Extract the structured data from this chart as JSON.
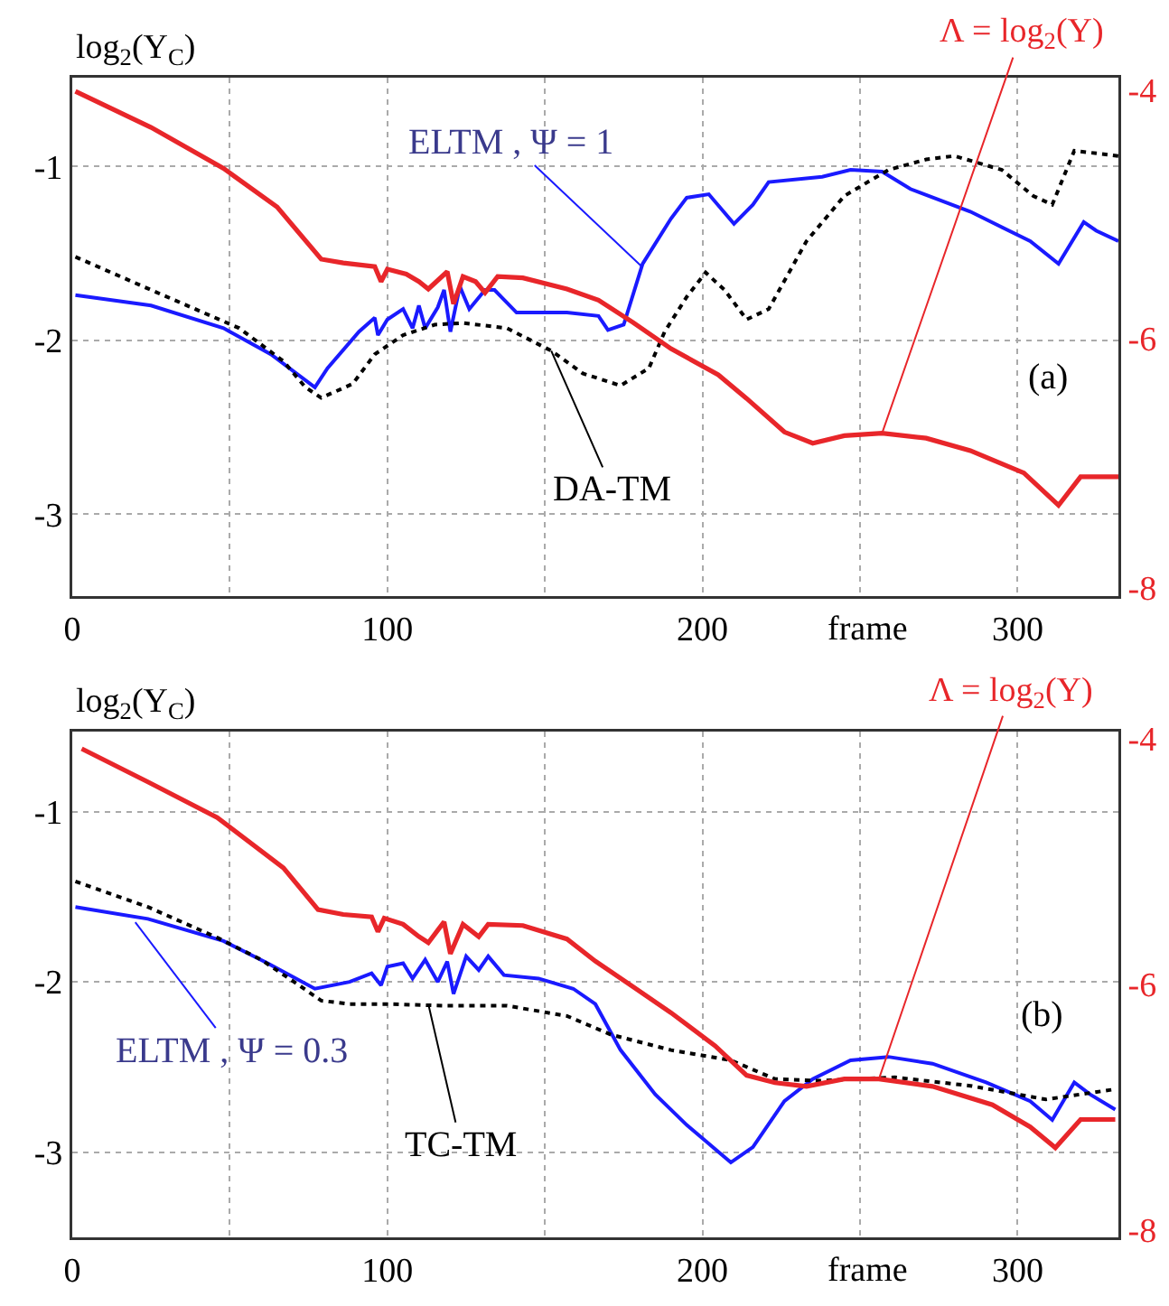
{
  "chart_data": [
    {
      "type": "line",
      "xlabel": "frame",
      "ylabel": "log$_{2}$(Y$_{C}$)",
      "y2label": "Λ = log$_{2}$(Y)",
      "xlim": [
        0,
        332
      ],
      "xticks": [
        0,
        {
          "value": 50,
          "label": null
        },
        100,
        {
          "value": 150,
          "label": null
        },
        200,
        {
          "value": 250,
          "label": null
        },
        300
      ],
      "ylim": [
        -3.47,
        -0.49
      ],
      "yticks": [
        -1,
        -2,
        -3
      ],
      "y2lim": [
        -8.07,
        -3.9
      ],
      "y2ticks": [
        -4,
        -6,
        -8
      ],
      "grid": true,
      "annotations": [
        {
          "text": "ELTM , Ψ = 1",
          "x": 181,
          "y": -1.58
        },
        {
          "text": "DA-TM",
          "x": 152,
          "y": -2.06
        },
        "(a)"
      ],
      "series": [
        {
          "color": "#e8262a",
          "axis": "y2",
          "line_style": "solid",
          "x": [
            1,
            25,
            48,
            65,
            79,
            86,
            96,
            98,
            100,
            106,
            110,
            113,
            119,
            121,
            124,
            128,
            131,
            135,
            143,
            157,
            167,
            178,
            190,
            205,
            214,
            226,
            235,
            245,
            257,
            271,
            285,
            302,
            313,
            320,
            332
          ],
          "values": [
            -4.01,
            -4.3,
            -4.63,
            -4.94,
            -5.36,
            -5.39,
            -5.42,
            -5.54,
            -5.44,
            -5.48,
            -5.54,
            -5.6,
            -5.46,
            -5.72,
            -5.5,
            -5.54,
            -5.63,
            -5.5,
            -5.51,
            -5.6,
            -5.69,
            -5.87,
            -6.08,
            -6.29,
            -6.48,
            -6.75,
            -6.84,
            -6.78,
            -6.76,
            -6.8,
            -6.9,
            -7.08,
            -7.34,
            -7.11,
            -7.11
          ]
        },
        {
          "color": "#1a1aff",
          "axis": "y",
          "line_style": "solid",
          "x": [
            1,
            25,
            48,
            63,
            77,
            81,
            91,
            96,
            97,
            100,
            105,
            108,
            110,
            112,
            116,
            118,
            120,
            123,
            126,
            131,
            134,
            141,
            148,
            157,
            167,
            170,
            175,
            181,
            190,
            195,
            202,
            210,
            216,
            221,
            238,
            247,
            257,
            266,
            285,
            304,
            313,
            321,
            325,
            332
          ],
          "values": [
            -1.74,
            -1.8,
            -1.93,
            -2.08,
            -2.27,
            -2.16,
            -1.95,
            -1.87,
            -1.97,
            -1.88,
            -1.82,
            -1.93,
            -1.8,
            -1.93,
            -1.81,
            -1.71,
            -1.95,
            -1.69,
            -1.82,
            -1.71,
            -1.71,
            -1.84,
            -1.84,
            -1.84,
            -1.86,
            -1.94,
            -1.91,
            -1.56,
            -1.3,
            -1.18,
            -1.16,
            -1.33,
            -1.22,
            -1.09,
            -1.06,
            -1.02,
            -1.03,
            -1.13,
            -1.26,
            -1.43,
            -1.56,
            -1.32,
            -1.37,
            -1.43
          ]
        },
        {
          "color": "#000000",
          "axis": "y",
          "line_style": "dotted",
          "x": [
            1,
            25,
            39,
            53,
            67,
            74,
            79,
            89,
            96,
            105,
            115,
            124,
            138,
            152,
            162,
            174,
            183,
            188,
            195,
            201,
            207,
            214,
            221,
            233,
            245,
            259,
            271,
            280,
            295,
            305,
            311,
            318,
            332
          ],
          "values": [
            -1.52,
            -1.71,
            -1.82,
            -1.93,
            -2.12,
            -2.27,
            -2.33,
            -2.25,
            -2.08,
            -1.97,
            -1.91,
            -1.9,
            -1.93,
            -2.06,
            -2.19,
            -2.26,
            -2.16,
            -1.95,
            -1.75,
            -1.61,
            -1.71,
            -1.88,
            -1.82,
            -1.43,
            -1.17,
            -1.02,
            -0.96,
            -0.94,
            -1.02,
            -1.17,
            -1.22,
            -0.91,
            -0.94
          ]
        }
      ]
    },
    {
      "type": "line",
      "xlabel": "frame",
      "ylabel": "log$_{2}$(Y$_{C}$)",
      "y2label": "Λ = log$_{2}$(Y)",
      "xlim": [
        0,
        332
      ],
      "xticks": [
        0,
        {
          "value": 50,
          "label": null
        },
        100,
        {
          "value": 150,
          "label": null
        },
        200,
        {
          "value": 250,
          "label": null
        },
        300
      ],
      "ylim": [
        -3.5,
        -0.53
      ],
      "yticks": [
        -1,
        -2,
        -3
      ],
      "y2lim": [
        -8.06,
        -3.94
      ],
      "y2ticks": [
        -4,
        -6,
        -8
      ],
      "grid": true,
      "annotations": [
        {
          "text": "ELTM , Ψ = 0.3",
          "x": 20,
          "y": -1.65
        },
        {
          "text": "TC-TM",
          "x": 113,
          "y": -2.13
        },
        "(b)"
      ],
      "series": [
        {
          "color": "#e8262a",
          "axis": "y2",
          "line_style": "solid",
          "x": [
            3,
            24,
            46,
            67,
            78,
            86,
            95,
            97,
            99,
            105,
            110,
            113,
            118,
            120,
            124,
            129,
            132,
            143,
            157,
            166,
            178,
            190,
            204,
            214,
            223,
            233,
            245,
            256,
            273,
            292,
            304,
            312,
            320,
            331
          ],
          "values": [
            -4.08,
            -4.35,
            -4.64,
            -5.05,
            -5.39,
            -5.43,
            -5.45,
            -5.57,
            -5.46,
            -5.51,
            -5.61,
            -5.66,
            -5.49,
            -5.75,
            -5.51,
            -5.61,
            -5.51,
            -5.52,
            -5.63,
            -5.81,
            -6.02,
            -6.23,
            -6.5,
            -6.74,
            -6.8,
            -6.83,
            -6.77,
            -6.77,
            -6.83,
            -6.98,
            -7.16,
            -7.33,
            -7.1,
            -7.1
          ]
        },
        {
          "color": "#1a1aff",
          "axis": "y",
          "line_style": "solid",
          "x": [
            1,
            24,
            48,
            62,
            77,
            88,
            95,
            98,
            100,
            105,
            108,
            112,
            116,
            119,
            121,
            125,
            129,
            132,
            137,
            148,
            159,
            166,
            174,
            185,
            195,
            202,
            209,
            216,
            226,
            235,
            247,
            259,
            273,
            290,
            304,
            311,
            318,
            323,
            331
          ],
          "values": [
            -1.56,
            -1.63,
            -1.76,
            -1.89,
            -2.04,
            -2.0,
            -1.95,
            -2.02,
            -1.91,
            -1.89,
            -1.98,
            -1.87,
            -2.0,
            -1.88,
            -2.07,
            -1.85,
            -1.93,
            -1.85,
            -1.96,
            -1.98,
            -2.04,
            -2.13,
            -2.4,
            -2.66,
            -2.84,
            -2.95,
            -3.06,
            -2.97,
            -2.7,
            -2.57,
            -2.46,
            -2.44,
            -2.48,
            -2.59,
            -2.7,
            -2.81,
            -2.59,
            -2.66,
            -2.75
          ]
        },
        {
          "color": "#000000",
          "axis": "y",
          "line_style": "dotted",
          "x": [
            1,
            24,
            46,
            60,
            72,
            79,
            88,
            100,
            119,
            138,
            157,
            171,
            190,
            209,
            223,
            237,
            261,
            285,
            309,
            331
          ],
          "values": [
            -1.41,
            -1.56,
            -1.74,
            -1.87,
            -2.02,
            -2.11,
            -2.13,
            -2.13,
            -2.14,
            -2.14,
            -2.2,
            -2.31,
            -2.4,
            -2.46,
            -2.57,
            -2.58,
            -2.56,
            -2.61,
            -2.69,
            -2.63
          ]
        }
      ]
    }
  ]
}
